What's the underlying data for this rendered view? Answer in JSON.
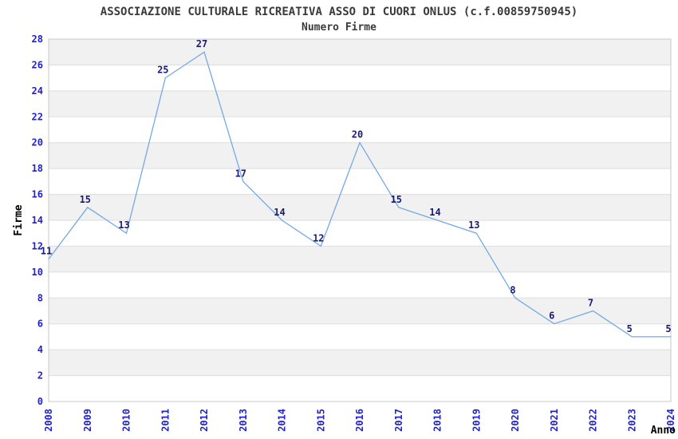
{
  "chart_data": {
    "type": "line",
    "title": "ASSOCIAZIONE CULTURALE RICREATIVA ASSO DI CUORI ONLUS (c.f.00859750945)",
    "subtitle": "Numero Firme",
    "xlabel": "Anno",
    "ylabel": "Firme",
    "x": [
      "2008",
      "2009",
      "2010",
      "2011",
      "2012",
      "2013",
      "2014",
      "2015",
      "2016",
      "2017",
      "2018",
      "2019",
      "2020",
      "2021",
      "2022",
      "2023",
      "2024"
    ],
    "values": [
      11,
      15,
      13,
      25,
      27,
      17,
      14,
      12,
      20,
      15,
      14,
      13,
      8,
      6,
      7,
      5,
      5
    ],
    "ylim": [
      0,
      28
    ],
    "ytick_step": 2,
    "grid": "horizontal",
    "legend": "none",
    "point_labels_visible": true,
    "colors": {
      "line": "#74a9e4",
      "point_label": "#1a1a7a",
      "tick_label": "#2222cc",
      "title_text": "#3a3a3a",
      "axis_title_text": "#000000",
      "band_fill": "#f1f1f1",
      "grid_line": "#dddddd",
      "plot_border": "#c8c8c8",
      "background": "#ffffff"
    }
  }
}
